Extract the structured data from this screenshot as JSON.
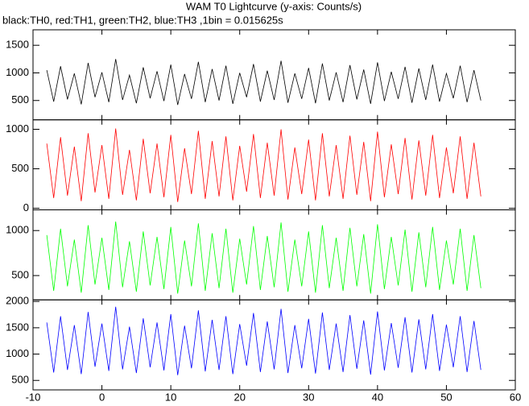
{
  "title": "WAM T0 Lightcurve (y-axis: Counts/s)",
  "subtitle": "black:TH0, red:TH1, green:TH2, blue:TH3 ,1bin = 0.015625s",
  "chart_data": [
    {
      "type": "line",
      "xlim": [
        -10,
        60
      ],
      "ylim": [
        150,
        1780
      ],
      "yticks": [
        500,
        1000,
        1500
      ],
      "x": [
        -8,
        -7,
        -6,
        -5,
        -4,
        -3,
        -2,
        -1,
        0,
        1,
        2,
        3,
        4,
        5,
        6,
        7,
        8,
        9,
        10,
        11,
        12,
        13,
        14,
        15,
        16,
        17,
        18,
        19,
        20,
        21,
        22,
        23,
        24,
        25,
        26,
        27,
        28,
        29,
        30,
        31,
        32,
        33,
        34,
        35,
        36,
        37,
        38,
        39,
        40,
        41,
        42,
        43,
        44,
        45,
        46,
        47,
        48,
        49,
        50,
        51,
        52,
        53,
        54,
        55
      ],
      "series": [
        {
          "name": "TH0",
          "color": "#000000",
          "values": [
            1050,
            480,
            1120,
            520,
            990,
            430,
            1180,
            560,
            1010,
            470,
            1250,
            510,
            960,
            450,
            1100,
            540,
            1030,
            490,
            1150,
            420,
            980,
            530,
            1200,
            470,
            1070,
            500,
            1130,
            440,
            1000,
            560,
            1160,
            480,
            1040,
            510,
            1220,
            460,
            990,
            530,
            1090,
            450,
            1170,
            500,
            1010,
            470,
            1140,
            520,
            1060,
            440,
            1190,
            490,
            1020,
            530,
            1110,
            460,
            1080,
            510,
            1150,
            480,
            990,
            540,
            1130,
            470,
            1050,
            500
          ]
        }
      ]
    },
    {
      "type": "line",
      "xlim": [
        -10,
        60
      ],
      "ylim": [
        -20,
        1120
      ],
      "yticks": [
        0,
        500,
        1000
      ],
      "x": [
        -8,
        -7,
        -6,
        -5,
        -4,
        -3,
        -2,
        -1,
        0,
        1,
        2,
        3,
        4,
        5,
        6,
        7,
        8,
        9,
        10,
        11,
        12,
        13,
        14,
        15,
        16,
        17,
        18,
        19,
        20,
        21,
        22,
        23,
        24,
        25,
        26,
        27,
        28,
        29,
        30,
        31,
        32,
        33,
        34,
        35,
        36,
        37,
        38,
        39,
        40,
        41,
        42,
        43,
        44,
        45,
        46,
        47,
        48,
        49,
        50,
        51,
        52,
        53,
        54,
        55
      ],
      "series": [
        {
          "name": "TH1",
          "color": "#ff0000",
          "values": [
            820,
            130,
            900,
            160,
            780,
            90,
            950,
            200,
            800,
            120,
            1010,
            170,
            740,
            100,
            880,
            190,
            820,
            140,
            930,
            80,
            760,
            180,
            980,
            120,
            850,
            150,
            910,
            100,
            790,
            210,
            940,
            130,
            830,
            160,
            1000,
            110,
            770,
            180,
            870,
            100,
            950,
            150,
            800,
            120,
            920,
            170,
            840,
            90,
            970,
            140,
            810,
            180,
            890,
            110,
            860,
            160,
            930,
            130,
            770,
            190,
            910,
            120,
            830,
            150
          ]
        }
      ]
    },
    {
      "type": "line",
      "xlim": [
        -10,
        60
      ],
      "ylim": [
        230,
        1230
      ],
      "yticks": [
        500,
        1000
      ],
      "x": [
        -8,
        -7,
        -6,
        -5,
        -4,
        -3,
        -2,
        -1,
        0,
        1,
        2,
        3,
        4,
        5,
        6,
        7,
        8,
        9,
        10,
        11,
        12,
        13,
        14,
        15,
        16,
        17,
        18,
        19,
        20,
        21,
        22,
        23,
        24,
        25,
        26,
        27,
        28,
        29,
        30,
        31,
        32,
        33,
        34,
        35,
        36,
        37,
        38,
        39,
        40,
        41,
        42,
        43,
        44,
        45,
        46,
        47,
        48,
        49,
        50,
        51,
        52,
        53,
        54,
        55
      ],
      "series": [
        {
          "name": "TH2",
          "color": "#00ff00",
          "values": [
            950,
            330,
            1020,
            380,
            900,
            310,
            1060,
            400,
            920,
            340,
            1100,
            370,
            880,
            320,
            990,
            390,
            930,
            350,
            1040,
            300,
            890,
            380,
            1080,
            330,
            970,
            360,
            1020,
            310,
            910,
            400,
            1050,
            340,
            940,
            370,
            1090,
            320,
            900,
            380,
            990,
            310,
            1060,
            360,
            920,
            330,
            1030,
            380,
            960,
            300,
            1070,
            350,
            930,
            390,
            1010,
            320,
            980,
            370,
            1040,
            340,
            890,
            400,
            1020,
            330,
            950,
            360
          ]
        }
      ]
    },
    {
      "type": "line",
      "xlim": [
        -10,
        60
      ],
      "ylim": [
        320,
        2030
      ],
      "yticks": [
        500,
        1000,
        1500,
        2000
      ],
      "xticks": [
        -10,
        0,
        10,
        20,
        30,
        40,
        50,
        60
      ],
      "x": [
        -8,
        -7,
        -6,
        -5,
        -4,
        -3,
        -2,
        -1,
        0,
        1,
        2,
        3,
        4,
        5,
        6,
        7,
        8,
        9,
        10,
        11,
        12,
        13,
        14,
        15,
        16,
        17,
        18,
        19,
        20,
        21,
        22,
        23,
        24,
        25,
        26,
        27,
        28,
        29,
        30,
        31,
        32,
        33,
        34,
        35,
        36,
        37,
        38,
        39,
        40,
        41,
        42,
        43,
        44,
        45,
        46,
        47,
        48,
        49,
        50,
        51,
        52,
        53,
        54,
        55
      ],
      "series": [
        {
          "name": "TH3",
          "color": "#0000ff",
          "values": [
            1600,
            650,
            1720,
            700,
            1550,
            620,
            1800,
            760,
            1580,
            680,
            1900,
            710,
            1520,
            640,
            1680,
            750,
            1600,
            690,
            1760,
            600,
            1540,
            730,
            1830,
            670,
            1650,
            700,
            1720,
            620,
            1570,
            780,
            1780,
            660,
            1620,
            710,
            1860,
            640,
            1550,
            730,
            1670,
            630,
            1790,
            700,
            1580,
            660,
            1740,
            720,
            1640,
            610,
            1810,
            690,
            1590,
            740,
            1700,
            650,
            1660,
            710,
            1760,
            680,
            1560,
            750,
            1720,
            660,
            1630,
            700
          ]
        }
      ]
    }
  ]
}
